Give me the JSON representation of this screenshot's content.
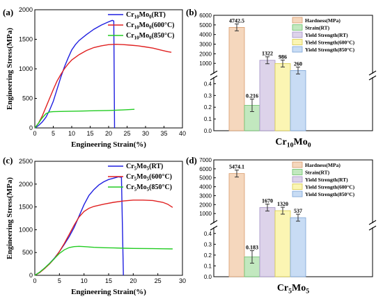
{
  "chart_data": [
    {
      "panel": "(a)",
      "type": "line",
      "xlabel": "Engineering Strain(%)",
      "ylabel": "Engineering Stress(MPa)",
      "xlim": [
        0,
        40
      ],
      "ylim": [
        0,
        2000
      ],
      "xticks": [
        "0",
        "5",
        "10",
        "15",
        "20",
        "25",
        "30",
        "35",
        "40"
      ],
      "yticks": [
        "0",
        "500",
        "1000",
        "1500",
        "2000"
      ],
      "legend_position": "top-right",
      "series": [
        {
          "legend": {
            "base": "Cr",
            "s1": "10",
            "mid": "Mo",
            "s2": "0",
            "cond": "(RT)"
          },
          "color": "#1f1fe0",
          "x": [
            0,
            1,
            2,
            3,
            4,
            5,
            6,
            7,
            8,
            9,
            10,
            11,
            12,
            14,
            16,
            18,
            20,
            21,
            21.4,
            21.6
          ],
          "y": [
            0,
            40,
            100,
            180,
            300,
            450,
            650,
            850,
            1030,
            1180,
            1320,
            1410,
            1480,
            1580,
            1670,
            1740,
            1795,
            1820,
            1810,
            0
          ]
        },
        {
          "legend": {
            "base": "Cr",
            "s1": "10",
            "mid": "Mo",
            "s2": "0",
            "cond": "(600°C)"
          },
          "color": "#e02020",
          "x": [
            0,
            1,
            2,
            3,
            4,
            5,
            6,
            7,
            8,
            9,
            10,
            12,
            14,
            16,
            18,
            20,
            22,
            24,
            26,
            28,
            30,
            32,
            34,
            36,
            37
          ],
          "y": [
            0,
            80,
            200,
            350,
            500,
            650,
            790,
            900,
            1000,
            1080,
            1150,
            1240,
            1310,
            1360,
            1390,
            1410,
            1415,
            1410,
            1400,
            1390,
            1370,
            1350,
            1320,
            1290,
            1280
          ]
        },
        {
          "legend": {
            "base": "Cr",
            "s1": "10",
            "mid": "Mo",
            "s2": "0",
            "cond": "(850°C)"
          },
          "color": "#22cc22",
          "x": [
            0,
            1,
            2,
            3,
            4,
            5,
            8,
            12,
            16,
            20,
            24,
            27
          ],
          "y": [
            0,
            80,
            170,
            240,
            270,
            275,
            280,
            285,
            290,
            295,
            305,
            315
          ]
        }
      ]
    },
    {
      "panel": "(b)",
      "type": "bar",
      "group_label": {
        "base": "Cr",
        "s1": "10",
        "mid": "Mo",
        "s2": "0"
      },
      "upper_yticks": [
        "1000",
        "2000",
        "3000",
        "4000",
        "5000",
        "6000"
      ],
      "lower_yticks": [
        "0.0",
        "0.1",
        "0.2",
        "0.3",
        "0.4"
      ],
      "upper_ylim": [
        0,
        6000
      ],
      "lower_ylim": [
        0,
        0.45
      ],
      "legend_position": "top-right",
      "categories": [
        "Hardness(MPa)",
        "Strain(RT)",
        "Yield Strength(RT)",
        "Yield Strength(600°C)",
        "Yield Strength(850°C)"
      ],
      "values": [
        4742.5,
        0.216,
        1322,
        986,
        260
      ],
      "labels": [
        "4742.5",
        "0.216",
        "1322",
        "986",
        "260"
      ],
      "axis": [
        "upper",
        "lower",
        "upper",
        "upper",
        "upper"
      ]
    },
    {
      "panel": "(c)",
      "type": "line",
      "xlabel": "Engineering Strain(%)",
      "ylabel": "Engineering Stress(MPa)",
      "xlim": [
        0,
        30
      ],
      "ylim": [
        0,
        2500
      ],
      "xticks": [
        "0",
        "5",
        "10",
        "15",
        "20",
        "25",
        "30"
      ],
      "yticks": [
        "0",
        "500",
        "1000",
        "1500",
        "2000",
        "2500"
      ],
      "legend_position": "top-right",
      "series": [
        {
          "legend": {
            "base": "Cr",
            "s1": "5",
            "mid": "Mo",
            "s2": "5",
            "cond": "(RT)"
          },
          "color": "#1f1fe0",
          "x": [
            0,
            1,
            2,
            3,
            4,
            5,
            6,
            7,
            8,
            9,
            10,
            11,
            12,
            13,
            14,
            15,
            16,
            17,
            17.6,
            18
          ],
          "y": [
            0,
            70,
            160,
            260,
            380,
            520,
            680,
            850,
            1050,
            1300,
            1550,
            1750,
            1880,
            1980,
            2050,
            2100,
            2130,
            2160,
            2150,
            0
          ]
        },
        {
          "legend": {
            "base": "Cr",
            "s1": "5",
            "mid": "Mo",
            "s2": "5",
            "cond": "(600°C)"
          },
          "color": "#e02020",
          "x": [
            0,
            1,
            2,
            3,
            4,
            5,
            6,
            7,
            8,
            9,
            10,
            11,
            12,
            14,
            16,
            18,
            20,
            22,
            24,
            26,
            27,
            28
          ],
          "y": [
            0,
            60,
            150,
            250,
            370,
            520,
            700,
            900,
            1100,
            1280,
            1400,
            1470,
            1510,
            1560,
            1600,
            1630,
            1650,
            1650,
            1640,
            1600,
            1560,
            1490
          ]
        },
        {
          "legend": {
            "base": "Cr",
            "s1": "5",
            "mid": "Mo",
            "s2": "5",
            "cond": "(850°C)"
          },
          "color": "#22cc22",
          "x": [
            0,
            1,
            2,
            3,
            4,
            5,
            6,
            7,
            8,
            9,
            10,
            12,
            14,
            16,
            18,
            20,
            22,
            24,
            26,
            28
          ],
          "y": [
            0,
            70,
            160,
            260,
            370,
            480,
            560,
            610,
            630,
            635,
            630,
            615,
            605,
            600,
            595,
            590,
            588,
            585,
            583,
            580
          ]
        }
      ]
    },
    {
      "panel": "(d)",
      "type": "bar",
      "group_label": {
        "base": "Cr",
        "s1": "5",
        "mid": "Mo",
        "s2": "5"
      },
      "upper_yticks": [
        "1000",
        "2000",
        "3000",
        "4000",
        "5000",
        "6000",
        "7000"
      ],
      "lower_yticks": [
        "0.0",
        "0.1",
        "0.2",
        "0.3",
        "0.4"
      ],
      "upper_ylim": [
        0,
        7000
      ],
      "lower_ylim": [
        0,
        0.45
      ],
      "legend_position": "top-right",
      "categories": [
        "Hardness(MPa)",
        "Strain(RT)",
        "Yield Strength(RT)",
        "Yield Strength(600°C)",
        "Yield Strength(850°C)"
      ],
      "values": [
        5474.1,
        0.183,
        1670,
        1320,
        537
      ],
      "labels": [
        "5474.1",
        "0.183",
        "1670",
        "1320",
        "537"
      ],
      "axis": [
        "upper",
        "lower",
        "upper",
        "upper",
        "upper"
      ]
    }
  ],
  "bar_colors": [
    "#f5d7bd",
    "#c2e8bf",
    "#ddd3ea",
    "#fbf5b3",
    "#c8dcf4"
  ],
  "bar_edges": [
    "#d89a6a",
    "#6abf6a",
    "#a392c6",
    "#d6c94a",
    "#7aa3d6"
  ]
}
